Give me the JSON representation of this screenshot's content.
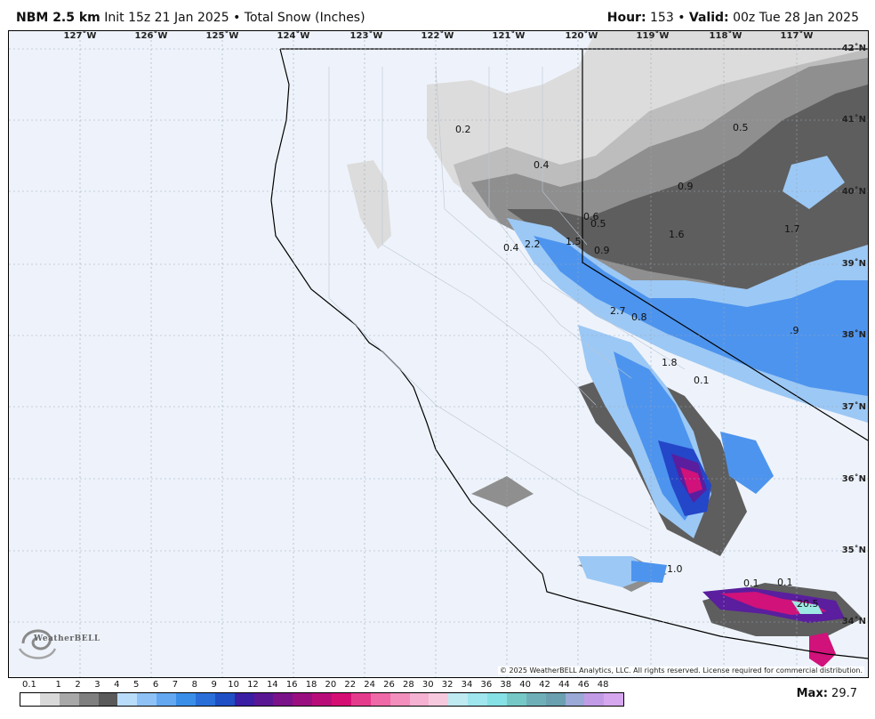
{
  "header": {
    "model": "NBM 2.5 km",
    "init": "Init 15z 21 Jan 2025",
    "bullet": "•",
    "product": "Total Snow (Inches)",
    "hour_label": "Hour:",
    "hour": "153",
    "valid_label": "Valid:",
    "valid": "00z Tue 28 Jan 2025"
  },
  "map": {
    "region": "California / Nevada",
    "lon_labels": [
      "127˚W",
      "126˚W",
      "125˚W",
      "124˚W",
      "123˚W",
      "122˚W",
      "121˚W",
      "120˚W",
      "119˚W",
      "118˚W",
      "117˚W"
    ],
    "lat_labels": [
      "42˚N",
      "41˚N",
      "40˚N",
      "39˚N",
      "38˚N",
      "37˚N",
      "36˚N",
      "35˚N",
      "34˚N"
    ],
    "value_labels": [
      "0.2",
      "0.4",
      "0.5",
      "0.9",
      "0.6",
      "0.5",
      "1.6",
      "1.7",
      "1.5",
      "0.9",
      "2.2",
      "0.4",
      "2.7",
      "0.8",
      ".9",
      "1.8",
      "0.1",
      "1.0",
      "0.1",
      "0.1",
      "20.5"
    ],
    "copyright": "© 2025 WeatherBELL Analytics, LLC. All rights reserved. License required for commercial distribution.",
    "logo_text": "WeatherBELL"
  },
  "colors": {
    "background": "#eef3fb",
    "trace": "#dcdcdc",
    "light_gray": "#bdbdbd",
    "mid_gray": "#8f8f8f",
    "dark_gray": "#5e5e5e",
    "light_blue": "#9cc8f5",
    "blue": "#4d94ee",
    "deep_blue": "#2446c8",
    "purple": "#5a1e9e",
    "magenta": "#d0127a",
    "pink": "#f06aa8",
    "cyan": "#9de9e4"
  },
  "scale": {
    "ticks": [
      "0.1",
      "1",
      "2",
      "3",
      "4",
      "5",
      "6",
      "7",
      "8",
      "9",
      "10",
      "12",
      "14",
      "16",
      "18",
      "20",
      "22",
      "24",
      "26",
      "28",
      "30",
      "32",
      "34",
      "36",
      "38",
      "40",
      "42",
      "44",
      "46",
      "48"
    ],
    "swatch_colors": [
      "#ffffff",
      "#d9d9d9",
      "#a8a8a8",
      "#7f7f7f",
      "#5a5a5a",
      "#b9dcfb",
      "#8ec2f6",
      "#63a8f1",
      "#3b8ee8",
      "#2a6fd9",
      "#1f4fc4",
      "#3a1fa4",
      "#5a1794",
      "#7a1389",
      "#9a0f7f",
      "#b80d79",
      "#d50e74",
      "#e53b8d",
      "#ef68a7",
      "#f28fbd",
      "#f5b2d2",
      "#f7c9de",
      "#bfeaf2",
      "#9fe6ee",
      "#86e1e6",
      "#76c8c6",
      "#6fb0b8",
      "#6aa0b0",
      "#9aa9d6",
      "#c29be6",
      "#d6a7ef"
    ],
    "max_label": "Max:",
    "max_value": "29.7"
  }
}
